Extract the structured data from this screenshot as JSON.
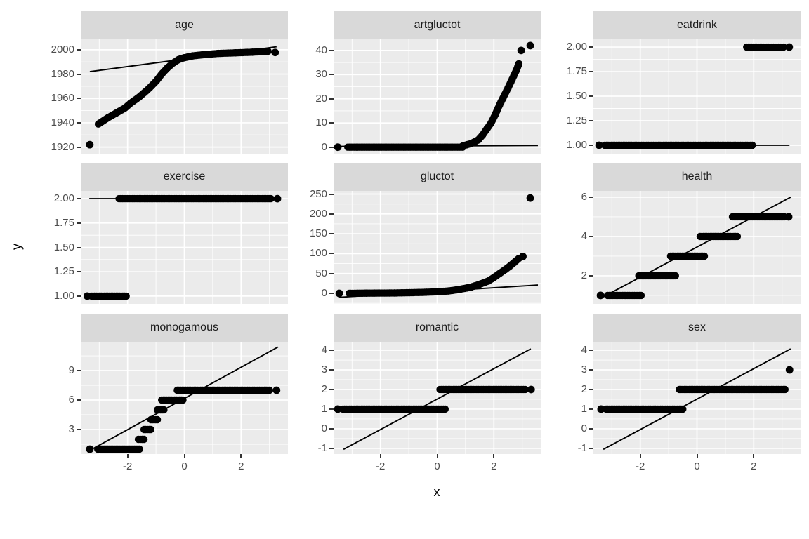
{
  "figure": {
    "xlabel": "x",
    "ylabel": "y",
    "xticks": [
      -2,
      0,
      2
    ],
    "xtick_labels": [
      "-2",
      "0",
      "2"
    ],
    "x_minor": [
      -3,
      -1,
      1,
      3
    ],
    "xlim": [
      -3.65,
      3.65
    ],
    "colors": {
      "background": "#FFFFFF",
      "panel": "#EBEBEB",
      "strip": "#D9D9D9",
      "grid": "#FFFFFF",
      "point": "#000000",
      "qq_line": "#000000",
      "axis_text": "#4D4D4D",
      "strip_text": "#1A1A1A",
      "tick_mark": "#333333"
    }
  },
  "chart_data": [
    {
      "facet": "age",
      "type": "scatter",
      "ylim": [
        1914,
        2008.6
      ],
      "yticks": [
        1920,
        1940,
        1960,
        1980,
        2000
      ],
      "ytick_labels": [
        "1920",
        "1940",
        "1960",
        "1980",
        "2000"
      ],
      "qq_line": [
        -3.33,
        1982,
        3.25,
        2002.5
      ],
      "point_runs": [
        [
          [
            -3.03,
            1939
          ],
          [
            -2.7,
            1944
          ],
          [
            -2.4,
            1948
          ],
          [
            -2.1,
            1952
          ],
          [
            -1.9,
            1956
          ],
          [
            -1.6,
            1961
          ],
          [
            -1.3,
            1967
          ],
          [
            -1.0,
            1974
          ],
          [
            -0.8,
            1980
          ],
          [
            -0.6,
            1985
          ],
          [
            -0.4,
            1989
          ],
          [
            -0.2,
            1992
          ],
          [
            0,
            1993.5
          ],
          [
            0.3,
            1995
          ],
          [
            0.7,
            1996
          ],
          [
            1.2,
            1997
          ],
          [
            1.8,
            1997.5
          ],
          [
            2.4,
            1998
          ],
          [
            2.95,
            1998.8
          ]
        ]
      ],
      "outlier_points": [
        [
          -3.33,
          1922
        ],
        [
          3.2,
          1997.8
        ]
      ]
    },
    {
      "facet": "artgluctot",
      "type": "scatter",
      "ylim": [
        -3,
        44.6
      ],
      "yticks": [
        0,
        10,
        20,
        30,
        40
      ],
      "ytick_labels": [
        "0",
        "10",
        "20",
        "30",
        "40"
      ],
      "qq_line": [
        -3.45,
        0.3,
        3.55,
        0.7
      ],
      "point_runs": [
        [
          [
            -3.15,
            0
          ],
          [
            0.9,
            0
          ]
        ],
        [
          [
            0.9,
            0.5
          ],
          [
            1.2,
            1.5
          ],
          [
            1.45,
            3
          ],
          [
            1.6,
            5
          ],
          [
            1.75,
            7.5
          ],
          [
            1.9,
            10
          ],
          [
            2.05,
            13.5
          ],
          [
            2.2,
            17.5
          ],
          [
            2.35,
            21
          ],
          [
            2.5,
            24.5
          ],
          [
            2.6,
            27
          ],
          [
            2.7,
            29.5
          ],
          [
            2.8,
            32
          ],
          [
            2.88,
            34.5
          ]
        ]
      ],
      "outlier_points": [
        [
          -3.5,
          0
        ],
        [
          2.96,
          40
        ],
        [
          3.28,
          42
        ]
      ]
    },
    {
      "facet": "eatdrink",
      "type": "scatter",
      "ylim": [
        0.907,
        2.079
      ],
      "yticks": [
        1,
        1.25,
        1.5,
        1.75,
        2
      ],
      "ytick_labels": [
        "1.00",
        "1.25",
        "1.50",
        "1.75",
        "2.00"
      ],
      "qq_line": [
        -3.42,
        1.0,
        3.26,
        1.0
      ],
      "point_runs": [
        [
          [
            -3.25,
            1
          ],
          [
            1.95,
            1
          ]
        ],
        [
          [
            1.75,
            2
          ],
          [
            3.05,
            2
          ]
        ]
      ],
      "outlier_points": [
        [
          -3.45,
          1
        ],
        [
          3.25,
          2
        ]
      ]
    },
    {
      "facet": "exercise",
      "type": "scatter",
      "ylim": [
        0.92,
        2.08
      ],
      "yticks": [
        1,
        1.25,
        1.5,
        1.75,
        2
      ],
      "ytick_labels": [
        "1.00",
        "1.25",
        "1.50",
        "1.75",
        "2.00"
      ],
      "qq_line": [
        -3.35,
        2.0,
        3.35,
        2.0
      ],
      "point_runs": [
        [
          [
            -3.28,
            1
          ],
          [
            -2.05,
            1
          ]
        ],
        [
          [
            -2.3,
            2
          ],
          [
            3.05,
            2
          ]
        ]
      ],
      "outlier_points": [
        [
          -3.42,
          1
        ],
        [
          3.28,
          2
        ]
      ]
    },
    {
      "facet": "gluctot",
      "type": "scatter",
      "ylim": [
        -26.5,
        258
      ],
      "yticks": [
        0,
        50,
        100,
        150,
        200,
        250
      ],
      "ytick_labels": [
        "0",
        "50",
        "100",
        "150",
        "200",
        "250"
      ],
      "qq_line": [
        -3.45,
        -10,
        3.55,
        21
      ],
      "point_runs": [
        [
          [
            -3.1,
            0
          ],
          [
            -2.5,
            0.5
          ],
          [
            -1.5,
            1
          ],
          [
            -0.5,
            2.5
          ],
          [
            0,
            4
          ],
          [
            0.4,
            6
          ],
          [
            0.8,
            10
          ],
          [
            1.2,
            16
          ],
          [
            1.5,
            23
          ],
          [
            1.8,
            31
          ],
          [
            2.0,
            40
          ],
          [
            2.2,
            50
          ],
          [
            2.4,
            60
          ],
          [
            2.55,
            68
          ],
          [
            2.7,
            77
          ],
          [
            2.88,
            88
          ]
        ]
      ],
      "outlier_points": [
        [
          -3.45,
          0
        ],
        [
          3.02,
          93
        ],
        [
          3.28,
          240
        ]
      ]
    },
    {
      "facet": "health",
      "type": "scatter",
      "ylim": [
        0.57,
        6.32
      ],
      "yticks": [
        2,
        4,
        6
      ],
      "ytick_labels": [
        "2",
        "4",
        "6"
      ],
      "qq_line": [
        -3.3,
        0.93,
        3.3,
        6.0
      ],
      "point_runs": [
        [
          [
            -3.15,
            1
          ],
          [
            -1.97,
            1
          ]
        ],
        [
          [
            -2.05,
            2
          ],
          [
            -0.76,
            2
          ]
        ],
        [
          [
            -0.93,
            3
          ],
          [
            0.26,
            3
          ]
        ],
        [
          [
            0.11,
            4
          ],
          [
            1.42,
            4
          ]
        ],
        [
          [
            1.25,
            5
          ],
          [
            3.08,
            5
          ]
        ]
      ],
      "outlier_points": [
        [
          -3.4,
          1
        ],
        [
          3.23,
          5
        ]
      ]
    },
    {
      "facet": "monogamous",
      "type": "scatter",
      "ylim": [
        0.5,
        11.93
      ],
      "yticks": [
        3,
        6,
        9
      ],
      "ytick_labels": [
        "3",
        "6",
        "9"
      ],
      "qq_line": [
        -3.25,
        1.0,
        3.3,
        11.4
      ],
      "point_runs": [
        [
          [
            -3.05,
            1
          ],
          [
            -1.58,
            1
          ]
        ],
        [
          [
            -1.62,
            2
          ],
          [
            -1.42,
            2
          ]
        ],
        [
          [
            -1.42,
            3
          ],
          [
            -1.18,
            3
          ]
        ],
        [
          [
            -1.18,
            4
          ],
          [
            -0.95,
            4
          ]
        ],
        [
          [
            -0.95,
            5
          ],
          [
            -0.72,
            5
          ]
        ],
        [
          [
            -0.8,
            6
          ],
          [
            -0.05,
            6
          ]
        ],
        [
          [
            -0.25,
            7
          ],
          [
            3.0,
            7
          ]
        ]
      ],
      "outlier_points": [
        [
          -3.33,
          1
        ],
        [
          3.25,
          7
        ]
      ]
    },
    {
      "facet": "romantic",
      "type": "scatter",
      "ylim": [
        -1.29,
        4.43
      ],
      "yticks": [
        -1,
        0,
        1,
        2,
        3,
        4
      ],
      "ytick_labels": [
        "-1",
        "0",
        "1",
        "2",
        "3",
        "4"
      ],
      "qq_line": [
        -3.3,
        -1.05,
        3.3,
        4.07
      ],
      "point_runs": [
        [
          [
            -3.32,
            1
          ],
          [
            0.28,
            1
          ]
        ],
        [
          [
            0.1,
            2
          ],
          [
            3.1,
            2
          ]
        ]
      ],
      "outlier_points": [
        [
          -3.5,
          1
        ],
        [
          3.31,
          2
        ]
      ]
    },
    {
      "facet": "sex",
      "type": "scatter",
      "ylim": [
        -1.29,
        4.43
      ],
      "yticks": [
        -1,
        0,
        1,
        2,
        3,
        4
      ],
      "ytick_labels": [
        "-1",
        "0",
        "1",
        "2",
        "3",
        "4"
      ],
      "qq_line": [
        -3.3,
        -1.05,
        3.3,
        4.07
      ],
      "point_runs": [
        [
          [
            -3.2,
            1
          ],
          [
            -0.5,
            1
          ]
        ],
        [
          [
            -0.62,
            2
          ],
          [
            3.1,
            2
          ]
        ]
      ],
      "outlier_points": [
        [
          -3.38,
          1
        ],
        [
          3.26,
          3
        ]
      ]
    }
  ]
}
